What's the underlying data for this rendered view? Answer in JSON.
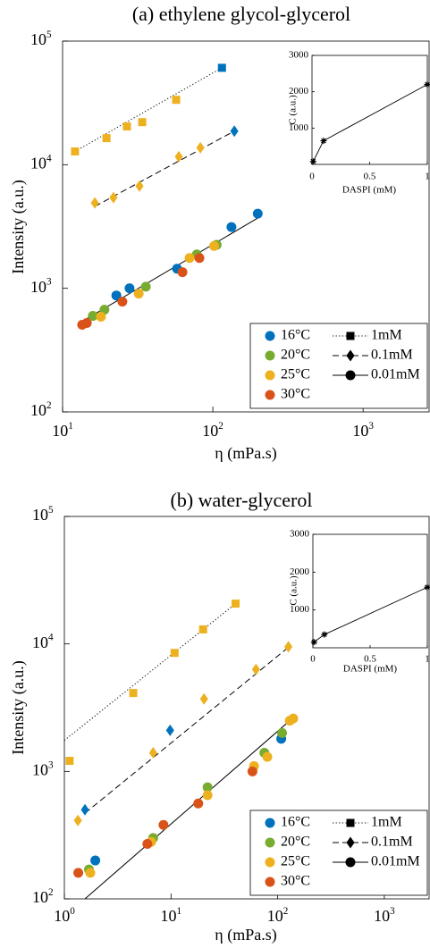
{
  "chart_data": [
    {
      "type": "scatter",
      "title": "(a) ethylene glycol-glycerol",
      "xlabel": "η (mPa.s)",
      "ylabel": "Intensity (a.u.)",
      "xscale": "log",
      "yscale": "log",
      "xlim": [
        10,
        2750
      ],
      "ylim": [
        100,
        100000
      ],
      "xticks": [
        {
          "value": 10,
          "label": "10",
          "exponent": "1"
        },
        {
          "value": 100,
          "label": "10",
          "exponent": "2"
        },
        {
          "value": 1000,
          "label": "10",
          "exponent": "3"
        }
      ],
      "yticks": [
        {
          "value": 100,
          "label": "10",
          "exponent": "2"
        },
        {
          "value": 1000,
          "label": "10",
          "exponent": "3"
        },
        {
          "value": 10000,
          "label": "10",
          "exponent": "4"
        },
        {
          "value": 100000,
          "label": "10",
          "exponent": "5"
        }
      ],
      "legend": "lower right",
      "temperatures": [
        {
          "name": "16°C",
          "color": "#0072BD"
        },
        {
          "name": "20°C",
          "color": "#77AC30"
        },
        {
          "name": "25°C",
          "color": "#EDB120"
        },
        {
          "name": "30°C",
          "color": "#D95319"
        }
      ],
      "concentrations": [
        {
          "name": "1mM",
          "marker": "square",
          "dash": "dotted",
          "fit": {
            "x": [
              12.1,
              115
            ],
            "y": [
              12800,
              60800
            ]
          },
          "groups": [
            {
              "color": "#EDB120",
              "x": [
                12.1,
                19.6,
                26.8,
                33.9,
                57
              ],
              "y": [
                12800,
                16400,
                20400,
                22100,
                33500
              ]
            },
            {
              "color": "#0072BD",
              "x": [
                115
              ],
              "y": [
                60800
              ]
            }
          ]
        },
        {
          "name": "0.1mM",
          "marker": "diamond",
          "dash": "dashed",
          "fit": {
            "x": [
              16.4,
              139
            ],
            "y": [
              4600,
              18700
            ]
          },
          "groups": [
            {
              "color": "#EDB120",
              "x": [
                16.4,
                21.8,
                32.5,
                59.4,
                82.6
              ],
              "y": [
                4910,
                5420,
                6720,
                11600,
                13700
              ]
            },
            {
              "color": "#0072BD",
              "x": [
                139
              ],
              "y": [
                18700
              ]
            }
          ]
        },
        {
          "name": "0.01mM",
          "marker": "circle",
          "dash": "solid",
          "fit": {
            "x": [
              13.5,
              199
            ],
            "y": [
              540,
              3700
            ]
          },
          "groups": [
            {
              "color": "#0072BD",
              "x": [
                22.8,
                27.9,
                57.8,
                133,
                199
              ],
              "y": [
                875,
                1000,
                1440,
                3130,
                4020
              ]
            },
            {
              "color": "#77AC30",
              "x": [
                15.9,
                19.0,
                35.8,
                78.2,
                106
              ],
              "y": [
                598,
                671,
                1030,
                1880,
                2250
              ]
            },
            {
              "color": "#EDB120",
              "x": [
                18.0,
                32.1,
                70,
                102
              ],
              "y": [
                589,
                905,
                1760,
                2200
              ]
            },
            {
              "color": "#D95319",
              "x": [
                13.5,
                14.5,
                25.0,
                62.8,
                81.4
              ],
              "y": [
                507,
                524,
                780,
                1350,
                1760
              ]
            }
          ]
        }
      ]
    },
    {
      "type": "line",
      "xlabel": "DASPI (mM)",
      "ylabel": "C (a.u.)",
      "xlim": [
        0,
        1
      ],
      "ylim": [
        0,
        3000
      ],
      "xticks": [
        0,
        0.5,
        1
      ],
      "yticks": [
        1000,
        2000,
        3000
      ],
      "marker": "asterisk",
      "color": "#000000",
      "x": [
        0.01,
        0.1,
        1
      ],
      "values": [
        80,
        650,
        2200
      ]
    },
    {
      "type": "scatter",
      "title": "(b) water-glycerol",
      "xlabel": "η (mPa.s)",
      "ylabel": "Intensity (a.u.)",
      "xscale": "log",
      "yscale": "log",
      "xlim": [
        1,
        2630
      ],
      "ylim": [
        100,
        100000
      ],
      "xticks": [
        {
          "value": 1,
          "label": "10",
          "exponent": "0"
        },
        {
          "value": 10,
          "label": "10",
          "exponent": "1"
        },
        {
          "value": 100,
          "label": "10",
          "exponent": "2"
        },
        {
          "value": 1000,
          "label": "10",
          "exponent": "3"
        }
      ],
      "yticks": [
        {
          "value": 100,
          "label": "10",
          "exponent": "2"
        },
        {
          "value": 1000,
          "label": "10",
          "exponent": "3"
        },
        {
          "value": 10000,
          "label": "10",
          "exponent": "4"
        },
        {
          "value": 100000,
          "label": "10",
          "exponent": "5"
        }
      ],
      "legend": "lower right",
      "temperatures": [
        {
          "name": "16°C",
          "color": "#0072BD"
        },
        {
          "name": "20°C",
          "color": "#77AC30"
        },
        {
          "name": "25°C",
          "color": "#EDB120"
        },
        {
          "name": "30°C",
          "color": "#D95319"
        }
      ],
      "concentrations": [
        {
          "name": "1mM",
          "marker": "square",
          "dash": "dotted",
          "fit": {
            "x": [
              1,
              40.3
            ],
            "y": [
              1750,
              20700
            ]
          },
          "groups": [
            {
              "color": "#EDB120",
              "x": [
                1.12,
                4.43,
                10.8,
                20,
                40.3
              ],
              "y": [
                1210,
                4120,
                8500,
                13000,
                20700
              ]
            }
          ]
        },
        {
          "name": "0.1mM",
          "marker": "diamond",
          "dash": "dashed",
          "fit": {
            "x": [
              1.56,
              126
            ],
            "y": [
              470,
              9400
            ]
          },
          "groups": [
            {
              "color": "#EDB120",
              "x": [
                1.34,
                6.8,
                20.4,
                62.6,
                126
              ],
              "y": [
                412,
                1400,
                3700,
                6300,
                9500
              ]
            },
            {
              "color": "#0072BD",
              "x": [
                1.56,
                9.8
              ],
              "y": [
                500,
                2100
              ]
            }
          ]
        },
        {
          "name": "0.01mM",
          "marker": "circle",
          "dash": "solid",
          "fit": {
            "x": [
              1.56,
              130
            ],
            "y": [
              100,
              2500
            ]
          },
          "groups": [
            {
              "color": "#0072BD",
              "x": [
                1.95,
                108
              ],
              "y": [
                200,
                1800
              ]
            },
            {
              "color": "#77AC30",
              "x": [
                1.7,
                6.8,
                22,
                75,
                110
              ],
              "y": [
                170,
                300,
                750,
                1400,
                2000
              ]
            },
            {
              "color": "#EDB120",
              "x": [
                1.75,
                6.5,
                22,
                60,
                80,
                130,
                140
              ],
              "y": [
                160,
                280,
                650,
                1100,
                1300,
                2500,
                2600
              ]
            },
            {
              "color": "#D95319",
              "x": [
                1.35,
                6,
                8.5,
                18,
                58
              ],
              "y": [
                160,
                270,
                380,
                560,
                1000
              ]
            }
          ]
        }
      ]
    },
    {
      "type": "line",
      "xlabel": "DASPI (mM)",
      "ylabel": "C (a.u.)",
      "xlim": [
        0,
        1
      ],
      "ylim": [
        0,
        3000
      ],
      "xticks": [
        0,
        0.5,
        1
      ],
      "yticks": [
        1000,
        2000,
        3000
      ],
      "marker": "asterisk",
      "color": "#000000",
      "x": [
        0.01,
        0.1,
        1
      ],
      "values": [
        150,
        350,
        1600
      ]
    }
  ]
}
